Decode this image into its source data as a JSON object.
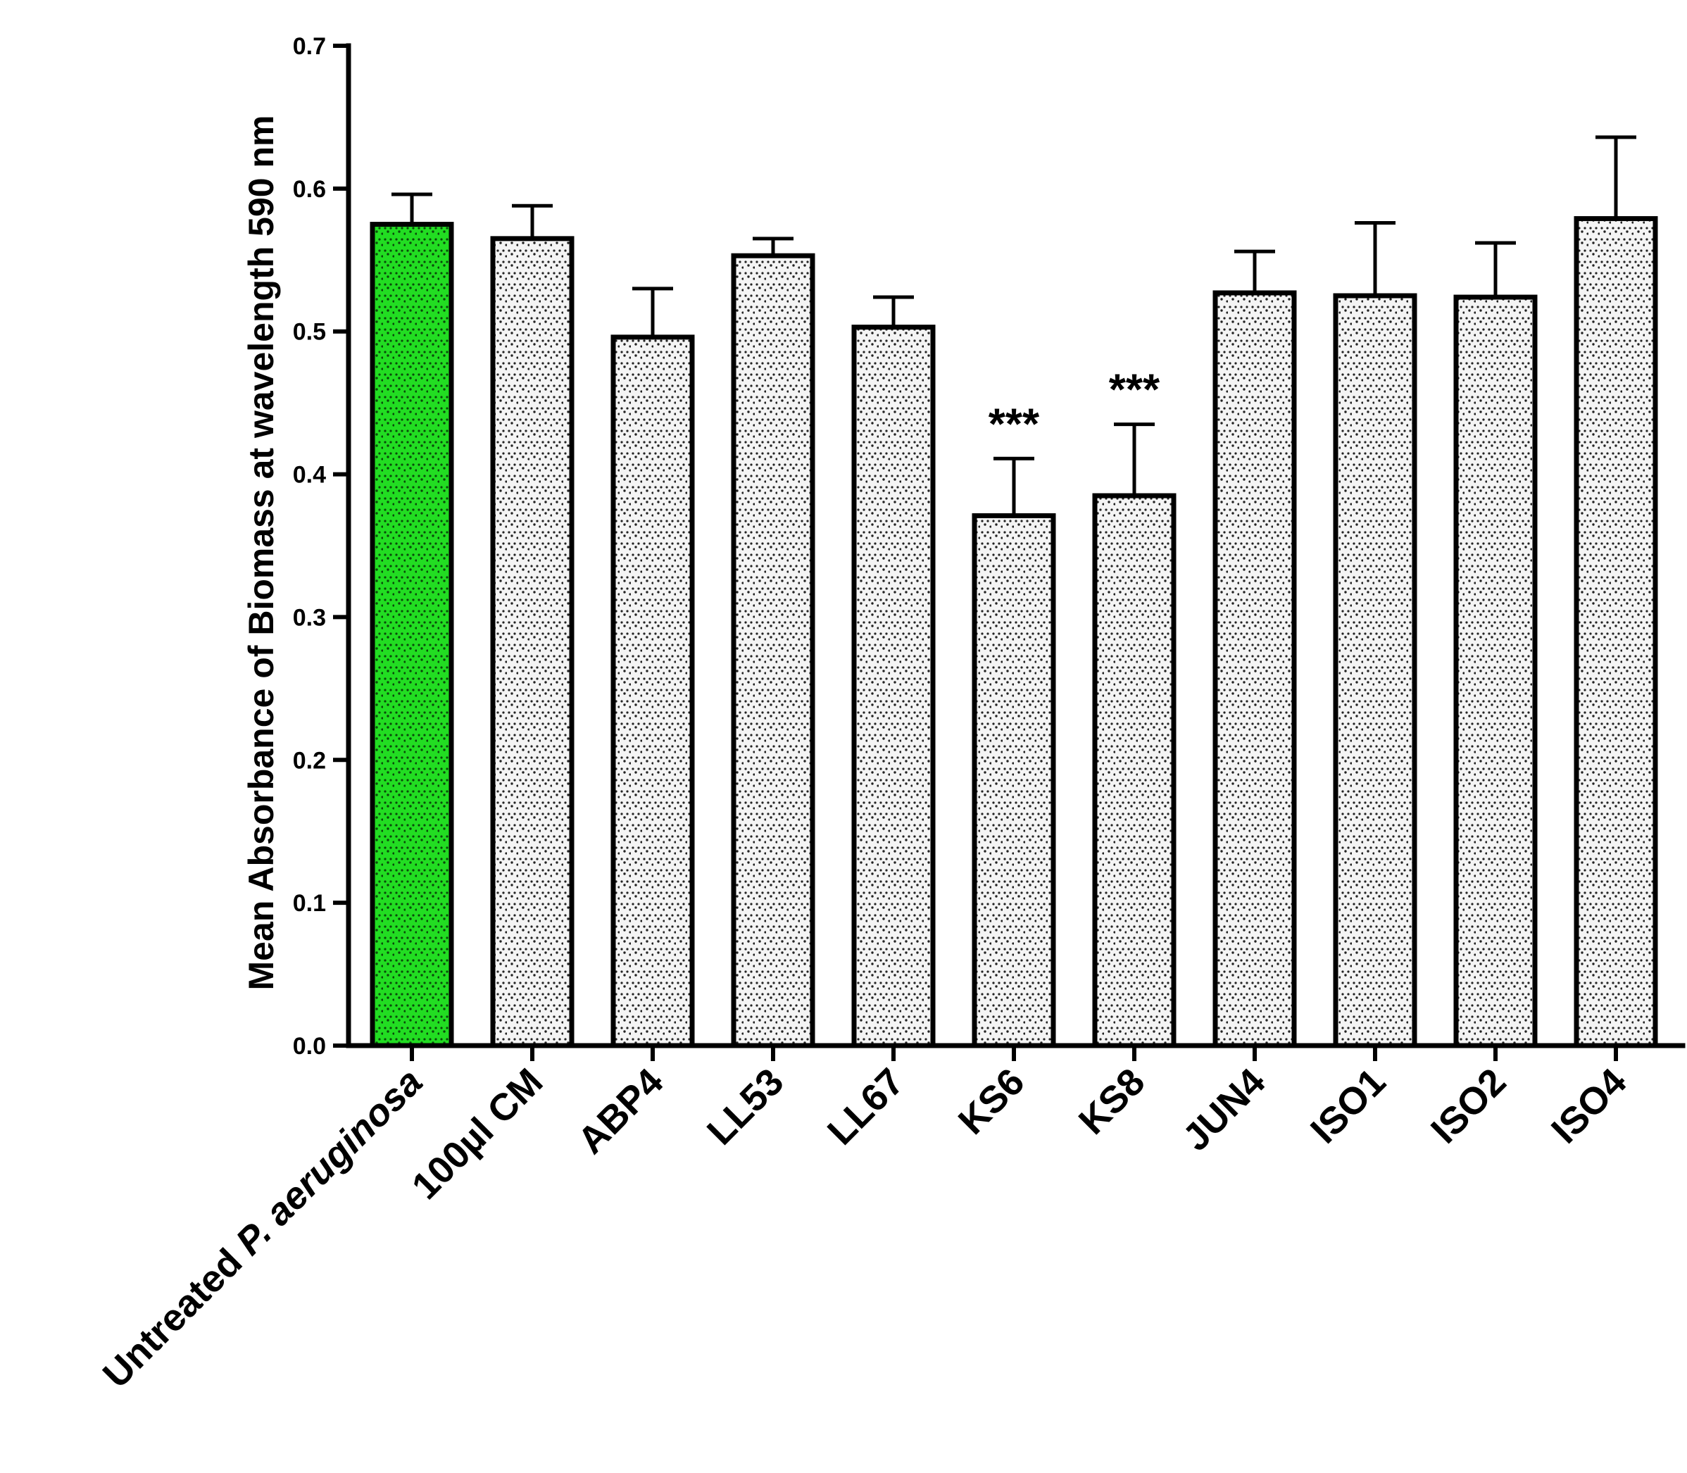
{
  "chart_data": {
    "type": "bar",
    "title": "",
    "xlabel": "",
    "ylabel": "Mean Absorbance of Biomass at wavelength 590 nm",
    "ylim": [
      0,
      0.7
    ],
    "yticks": [
      "0.0",
      "0.1",
      "0.2",
      "0.3",
      "0.4",
      "0.5",
      "0.6",
      "0.7"
    ],
    "grid": false,
    "legend": "none",
    "categories": [
      {
        "label": "Untreated ",
        "italic": "P. aeruginosa"
      },
      {
        "label": "100µl CM",
        "italic": ""
      },
      {
        "label": "ABP4",
        "italic": ""
      },
      {
        "label": "LL53",
        "italic": ""
      },
      {
        "label": "LL67",
        "italic": ""
      },
      {
        "label": "KS6",
        "italic": ""
      },
      {
        "label": "KS8",
        "italic": ""
      },
      {
        "label": "JUN4",
        "italic": ""
      },
      {
        "label": "ISO1",
        "italic": ""
      },
      {
        "label": "ISO2",
        "italic": ""
      },
      {
        "label": "ISO4",
        "italic": ""
      }
    ],
    "values": [
      0.575,
      0.565,
      0.496,
      0.553,
      0.503,
      0.371,
      0.385,
      0.527,
      0.525,
      0.524,
      0.579
    ],
    "errors": [
      0.021,
      0.023,
      0.034,
      0.012,
      0.021,
      0.04,
      0.05,
      0.029,
      0.051,
      0.038,
      0.057
    ],
    "significance": [
      "",
      "",
      "",
      "",
      "",
      "***",
      "***",
      "",
      "",
      "",
      ""
    ],
    "colors": {
      "highlight": "#22dd22",
      "highlight_dots": "#0a4a0a",
      "default": "#f4f4f4",
      "default_dots": "#222222",
      "outline": "#000000"
    },
    "highlight_index": 0
  }
}
